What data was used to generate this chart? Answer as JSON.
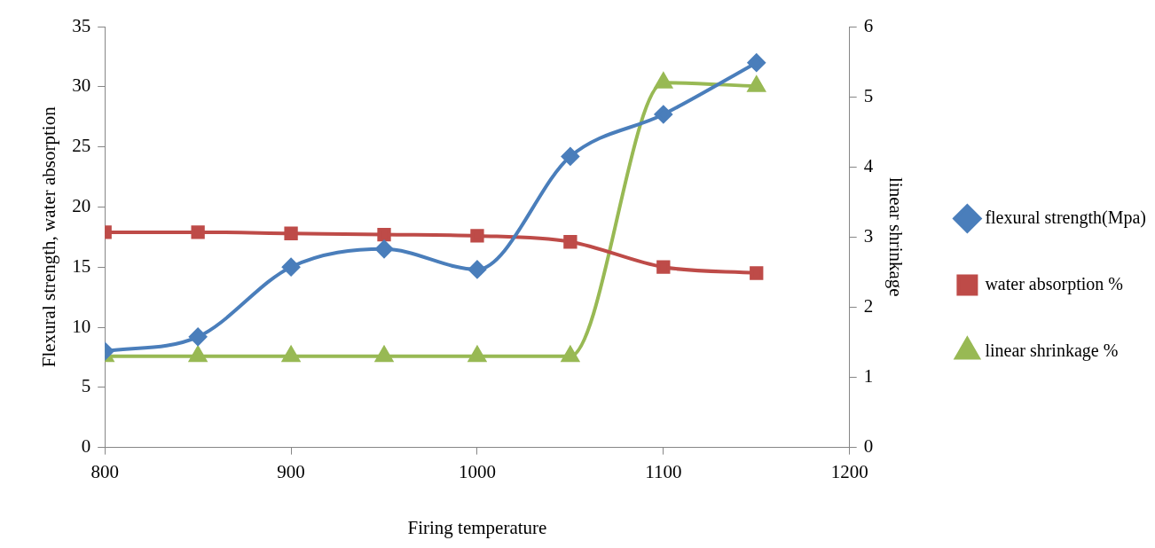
{
  "chart_data": {
    "type": "line",
    "xlabel": "Firing temperature",
    "ylabel": "Flexural strength, water absorption",
    "y2label": "linear shrinkage",
    "x": [
      800,
      850,
      900,
      950,
      1000,
      1050,
      1100,
      1150
    ],
    "series": [
      {
        "name": "flexural strength(Mpa)",
        "color": "#4a7ebb",
        "marker": "diamond",
        "values": [
          8,
          9.2,
          15,
          16.5,
          14.8,
          24.2,
          27.7,
          32
        ]
      },
      {
        "name": "water absorption %",
        "color": "#be4b48",
        "marker": "square",
        "values": [
          17.9,
          17.9,
          17.8,
          17.7,
          17.6,
          17.1,
          15,
          14.5
        ]
      },
      {
        "name": "linear shrinkage %",
        "color": "#98b954",
        "marker": "triangle",
        "axis": "y2",
        "values": [
          1.3,
          1.3,
          1.3,
          1.3,
          1.3,
          1.3,
          5.2,
          5.15
        ]
      }
    ],
    "xlim": [
      800,
      1200
    ],
    "xticks": [
      800,
      900,
      1000,
      1100,
      1200
    ],
    "ylim": [
      0,
      35
    ],
    "yticks": [
      0,
      5,
      10,
      15,
      20,
      25,
      30,
      35
    ],
    "y2lim": [
      0,
      6
    ],
    "y2ticks": [
      0,
      1,
      2,
      3,
      4,
      5,
      6
    ],
    "grid": false,
    "legend": "right"
  }
}
